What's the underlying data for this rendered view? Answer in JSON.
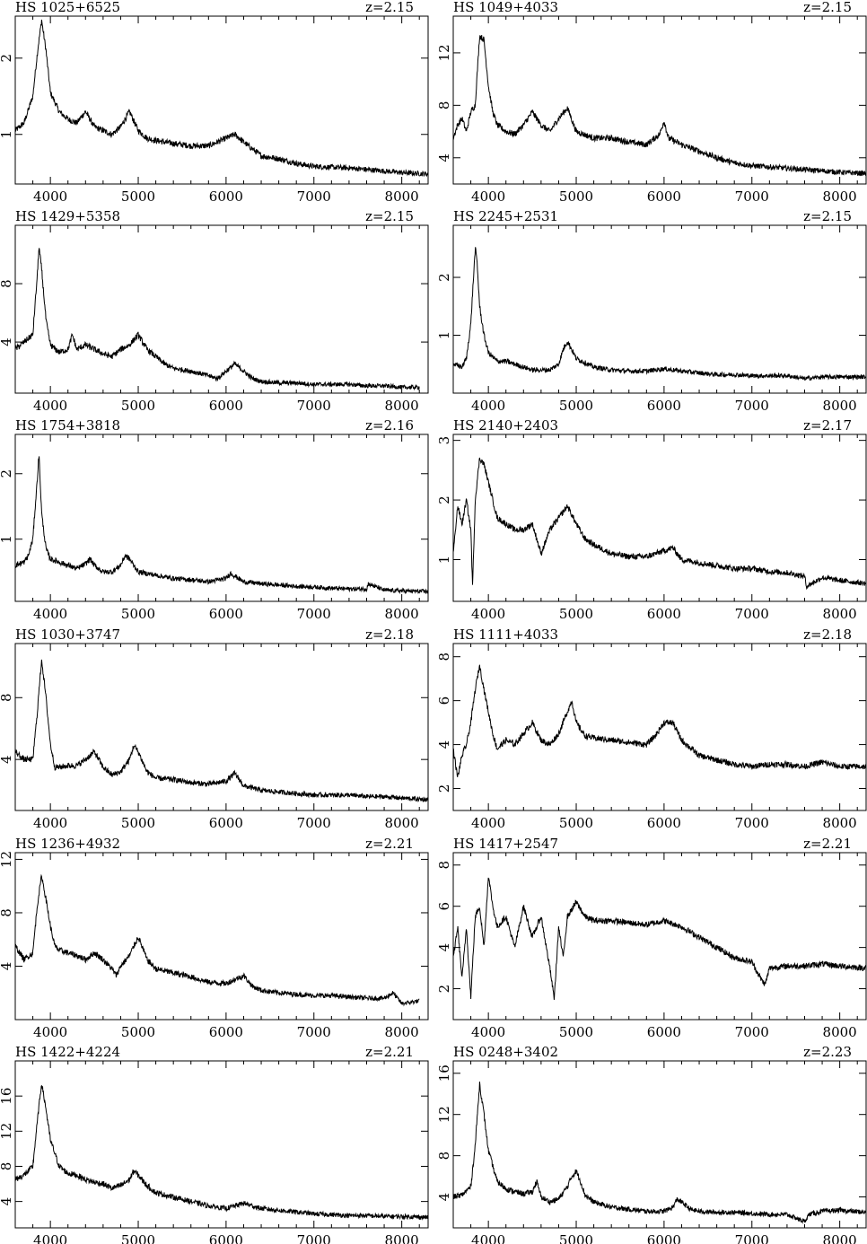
{
  "figure": {
    "x_axis": {
      "range": [
        3600,
        8300
      ],
      "ticks": [
        4000,
        5000,
        6000,
        7000,
        8000
      ]
    }
  },
  "chart_data": [
    {
      "type": "line",
      "title": "HS 1025+6525",
      "redshift_label": "z=2.15",
      "y_ticks": [
        1,
        2
      ],
      "ylim": [
        0.35,
        2.55
      ],
      "x": [
        3600,
        3700,
        3800,
        3850,
        3900,
        3950,
        4000,
        4100,
        4200,
        4300,
        4400,
        4500,
        4600,
        4700,
        4800,
        4900,
        5000,
        5100,
        5200,
        5400,
        5600,
        5800,
        6000,
        6100,
        6200,
        6400,
        6600,
        6800,
        7000,
        7200,
        7400,
        7600,
        7800,
        8000,
        8300
      ],
      "y": [
        1.05,
        1.15,
        1.5,
        2.05,
        2.5,
        2.1,
        1.55,
        1.3,
        1.2,
        1.15,
        1.3,
        1.1,
        1.05,
        1.0,
        1.1,
        1.3,
        1.05,
        0.95,
        0.92,
        0.88,
        0.85,
        0.85,
        0.95,
        1.0,
        0.9,
        0.72,
        0.68,
        0.62,
        0.58,
        0.57,
        0.56,
        0.54,
        0.52,
        0.5,
        0.48
      ]
    },
    {
      "type": "line",
      "title": "HS 1049+4033",
      "redshift_label": "z=2.15",
      "y_ticks": [
        4,
        8,
        12
      ],
      "ylim": [
        2.0,
        14.8
      ],
      "x": [
        3600,
        3650,
        3700,
        3750,
        3800,
        3850,
        3900,
        3950,
        4000,
        4050,
        4100,
        4200,
        4300,
        4400,
        4500,
        4600,
        4700,
        4800,
        4900,
        5000,
        5200,
        5400,
        5600,
        5800,
        5950,
        6000,
        6050,
        6200,
        6400,
        6600,
        6800,
        7000,
        7200,
        7400,
        7600,
        7800,
        8000,
        8300
      ],
      "y": [
        5.5,
        6.5,
        7.0,
        6.0,
        7.5,
        8.0,
        13.3,
        13.0,
        9.5,
        7.5,
        6.5,
        6.0,
        5.8,
        6.5,
        7.5,
        6.5,
        6.0,
        7.0,
        7.8,
        6.0,
        5.5,
        5.5,
        5.2,
        5.0,
        5.8,
        6.8,
        5.5,
        5.0,
        4.5,
        4.0,
        3.6,
        3.4,
        3.3,
        3.2,
        3.1,
        3.0,
        2.9,
        2.8
      ]
    },
    {
      "type": "line",
      "title": "HS 1429+5358",
      "redshift_label": "z=2.15",
      "y_ticks": [
        4,
        8
      ],
      "ylim": [
        0.5,
        12.0
      ],
      "x": [
        3600,
        3700,
        3800,
        3850,
        3870,
        3900,
        3950,
        4000,
        4100,
        4200,
        4250,
        4300,
        4400,
        4500,
        4600,
        4700,
        4800,
        4900,
        5000,
        5100,
        5200,
        5300,
        5400,
        5600,
        5800,
        5900,
        6000,
        6100,
        6200,
        6300,
        6400,
        6600,
        6800,
        7000,
        7200,
        7400,
        7600,
        7800,
        8000,
        8200
      ],
      "y": [
        3.5,
        4.0,
        4.5,
        8.5,
        10.5,
        9.0,
        5.5,
        3.8,
        3.3,
        3.5,
        4.5,
        3.5,
        3.8,
        3.5,
        3.2,
        3.0,
        3.5,
        3.8,
        4.5,
        3.5,
        3.0,
        2.5,
        2.2,
        2.0,
        1.7,
        1.5,
        2.0,
        2.5,
        2.0,
        1.5,
        1.3,
        1.2,
        1.2,
        1.1,
        1.1,
        1.1,
        1.0,
        1.0,
        0.9,
        0.9
      ]
    },
    {
      "type": "line",
      "title": "HS 2245+2531",
      "redshift_label": "z=2.15",
      "y_ticks": [
        1,
        2
      ],
      "ylim": [
        0.0,
        2.9
      ],
      "x": [
        3600,
        3700,
        3750,
        3800,
        3850,
        3870,
        3900,
        3950,
        4000,
        4100,
        4200,
        4300,
        4400,
        4500,
        4600,
        4700,
        4800,
        4850,
        4900,
        5000,
        5200,
        5400,
        5600,
        5800,
        6000,
        6200,
        6400,
        6600,
        6800,
        7000,
        7200,
        7400,
        7600,
        7800,
        8000,
        8300
      ],
      "y": [
        0.5,
        0.45,
        0.6,
        1.2,
        2.5,
        2.3,
        1.5,
        1.0,
        0.7,
        0.55,
        0.55,
        0.5,
        0.45,
        0.4,
        0.4,
        0.4,
        0.5,
        0.75,
        0.9,
        0.6,
        0.45,
        0.4,
        0.38,
        0.38,
        0.42,
        0.38,
        0.35,
        0.32,
        0.32,
        0.3,
        0.3,
        0.3,
        0.25,
        0.28,
        0.28,
        0.28
      ]
    },
    {
      "type": "line",
      "title": "HS 1754+3818",
      "redshift_label": "z=2.16",
      "y_ticks": [
        1,
        2
      ],
      "ylim": [
        0.05,
        2.6
      ],
      "x": [
        3600,
        3700,
        3750,
        3800,
        3850,
        3870,
        3900,
        3950,
        4000,
        4100,
        4200,
        4300,
        4400,
        4450,
        4500,
        4600,
        4700,
        4800,
        4850,
        4900,
        5000,
        5200,
        5400,
        5600,
        5800,
        6000,
        6050,
        6200,
        6400,
        6600,
        6800,
        7000,
        7200,
        7400,
        7600,
        7620,
        7800,
        8000,
        8300
      ],
      "y": [
        0.6,
        0.65,
        0.75,
        1.0,
        1.9,
        2.3,
        1.4,
        0.85,
        0.7,
        0.65,
        0.6,
        0.55,
        0.62,
        0.7,
        0.6,
        0.5,
        0.5,
        0.6,
        0.75,
        0.7,
        0.5,
        0.45,
        0.4,
        0.38,
        0.35,
        0.4,
        0.48,
        0.35,
        0.32,
        0.3,
        0.28,
        0.27,
        0.25,
        0.24,
        0.24,
        0.32,
        0.22,
        0.21,
        0.2
      ]
    },
    {
      "type": "line",
      "title": "HS 2140+2403",
      "redshift_label": "z=2.17",
      "y_ticks": [
        1,
        2,
        3
      ],
      "ylim": [
        0.3,
        3.1
      ],
      "x": [
        3600,
        3650,
        3700,
        3750,
        3800,
        3820,
        3850,
        3900,
        3950,
        4000,
        4050,
        4100,
        4200,
        4300,
        4400,
        4500,
        4600,
        4700,
        4800,
        4900,
        5000,
        5100,
        5200,
        5400,
        5600,
        5800,
        6000,
        6100,
        6200,
        6400,
        6600,
        6800,
        7000,
        7200,
        7400,
        7600,
        7620,
        7800,
        8000,
        8300
      ],
      "y": [
        1.1,
        1.9,
        1.6,
        2.0,
        1.5,
        0.55,
        2.0,
        2.7,
        2.6,
        2.3,
        2.0,
        1.7,
        1.6,
        1.5,
        1.5,
        1.6,
        1.1,
        1.5,
        1.7,
        1.9,
        1.6,
        1.35,
        1.25,
        1.1,
        1.05,
        1.05,
        1.15,
        1.2,
        1.0,
        0.95,
        0.9,
        0.85,
        0.85,
        0.8,
        0.78,
        0.72,
        0.55,
        0.7,
        0.65,
        0.6
      ]
    },
    {
      "type": "line",
      "title": "HS 1030+3747",
      "redshift_label": "z=2.18",
      "y_ticks": [
        4,
        8
      ],
      "ylim": [
        0.7,
        11.5
      ],
      "x": [
        3600,
        3700,
        3800,
        3850,
        3900,
        3950,
        4000,
        4050,
        4100,
        4200,
        4300,
        4400,
        4500,
        4600,
        4700,
        4800,
        4900,
        4950,
        5000,
        5100,
        5200,
        5400,
        5600,
        5800,
        6000,
        6100,
        6200,
        6400,
        6600,
        6800,
        7000,
        7200,
        7400,
        7600,
        7800,
        8000,
        8300
      ],
      "y": [
        4.5,
        4.0,
        4.0,
        7.0,
        10.5,
        8.0,
        5.0,
        3.5,
        3.5,
        3.6,
        3.6,
        4.0,
        4.5,
        3.5,
        3.0,
        3.2,
        4.0,
        4.9,
        4.5,
        3.2,
        2.8,
        2.7,
        2.5,
        2.4,
        2.6,
        3.1,
        2.3,
        2.0,
        1.9,
        1.8,
        1.7,
        1.7,
        1.7,
        1.6,
        1.6,
        1.5,
        1.4
      ]
    },
    {
      "type": "line",
      "title": "HS 1111+4033",
      "redshift_label": "z=2.18",
      "y_ticks": [
        2,
        4,
        6,
        8
      ],
      "ylim": [
        1.0,
        8.6
      ],
      "x": [
        3600,
        3650,
        3700,
        3750,
        3800,
        3850,
        3900,
        3950,
        4000,
        4050,
        4100,
        4200,
        4300,
        4400,
        4500,
        4600,
        4700,
        4800,
        4900,
        4950,
        5000,
        5100,
        5200,
        5400,
        5600,
        5800,
        5900,
        6000,
        6100,
        6200,
        6400,
        6600,
        6800,
        7000,
        7200,
        7400,
        7600,
        7800,
        8000,
        8300
      ],
      "y": [
        3.8,
        2.5,
        3.5,
        4.0,
        5.0,
        6.5,
        7.6,
        6.5,
        5.5,
        4.5,
        3.8,
        4.2,
        4.0,
        4.5,
        5.0,
        4.2,
        4.0,
        4.5,
        5.5,
        6.0,
        5.0,
        4.4,
        4.3,
        4.2,
        4.1,
        4.0,
        4.4,
        5.0,
        5.0,
        4.2,
        3.5,
        3.3,
        3.1,
        3.0,
        3.1,
        3.1,
        3.0,
        3.2,
        3.0,
        3.0
      ]
    },
    {
      "type": "line",
      "title": "HS 1236+4932",
      "redshift_label": "z=2.21",
      "y_ticks": [
        4,
        8,
        12
      ],
      "ylim": [
        0.0,
        12.5
      ],
      "x": [
        3600,
        3700,
        3800,
        3850,
        3900,
        3950,
        4000,
        4050,
        4100,
        4200,
        4300,
        4400,
        4500,
        4600,
        4700,
        4750,
        4800,
        4900,
        4950,
        5000,
        5100,
        5200,
        5400,
        5600,
        5800,
        6000,
        6100,
        6200,
        6300,
        6400,
        6600,
        6800,
        7000,
        7200,
        7400,
        7600,
        7800,
        7900,
        8000,
        8200
      ],
      "y": [
        5.5,
        4.5,
        5.0,
        8.5,
        10.8,
        9.0,
        7.0,
        5.5,
        5.2,
        5.0,
        4.8,
        4.5,
        5.0,
        4.5,
        3.8,
        3.3,
        4.0,
        4.8,
        5.5,
        6.2,
        4.5,
        3.8,
        3.5,
        3.2,
        2.8,
        2.7,
        3.0,
        3.3,
        2.5,
        2.2,
        2.0,
        1.9,
        1.8,
        1.8,
        1.7,
        1.6,
        1.6,
        2.0,
        1.2,
        1.4
      ]
    },
    {
      "type": "line",
      "title": "HS 1417+2547",
      "redshift_label": "z=2.21",
      "y_ticks": [
        2,
        4,
        6,
        8
      ],
      "ylim": [
        0.5,
        8.6
      ],
      "x": [
        3600,
        3650,
        3700,
        3750,
        3800,
        3850,
        3900,
        3950,
        4000,
        4050,
        4100,
        4200,
        4300,
        4400,
        4500,
        4600,
        4700,
        4750,
        4800,
        4850,
        4900,
        5000,
        5100,
        5200,
        5400,
        5600,
        5800,
        6000,
        6200,
        6400,
        6600,
        6800,
        7000,
        7100,
        7150,
        7200,
        7400,
        7600,
        7800,
        8000,
        8300
      ],
      "y": [
        3.5,
        5.0,
        2.5,
        5.0,
        1.6,
        5.5,
        6.0,
        4.0,
        7.5,
        6.0,
        5.0,
        5.5,
        4.0,
        6.0,
        4.5,
        5.5,
        3.0,
        1.5,
        5.0,
        3.5,
        5.5,
        6.2,
        5.5,
        5.3,
        5.3,
        5.2,
        5.1,
        5.3,
        5.0,
        4.5,
        4.0,
        3.5,
        3.3,
        2.5,
        2.2,
        3.0,
        3.1,
        3.1,
        3.2,
        3.1,
        3.0
      ]
    },
    {
      "type": "line",
      "title": "HS 1422+4224",
      "redshift_label": "z=2.21",
      "y_ticks": [
        4,
        8,
        12,
        16
      ],
      "ylim": [
        1.0,
        20.0
      ],
      "x": [
        3600,
        3700,
        3800,
        3850,
        3900,
        3950,
        4000,
        4100,
        4200,
        4300,
        4400,
        4500,
        4600,
        4700,
        4800,
        4900,
        4950,
        5000,
        5100,
        5200,
        5400,
        5600,
        5800,
        6000,
        6100,
        6200,
        6400,
        6600,
        6800,
        7000,
        7200,
        7400,
        7600,
        7800,
        8000,
        8300
      ],
      "y": [
        6.5,
        7.0,
        8.0,
        13.0,
        17.5,
        14.5,
        11.0,
        8.0,
        7.2,
        7.0,
        6.5,
        6.2,
        6.0,
        5.5,
        5.8,
        6.5,
        7.5,
        7.0,
        5.8,
        5.0,
        4.5,
        4.0,
        3.5,
        3.2,
        3.5,
        3.8,
        3.2,
        3.0,
        2.8,
        2.6,
        2.5,
        2.4,
        2.4,
        2.3,
        2.3,
        2.2
      ]
    },
    {
      "type": "line",
      "title": "HS 0248+3402",
      "redshift_label": "z=2.23",
      "y_ticks": [
        4,
        8,
        12,
        16
      ],
      "ylim": [
        1.0,
        17.2
      ],
      "x": [
        3600,
        3700,
        3800,
        3850,
        3900,
        3950,
        4000,
        4100,
        4200,
        4300,
        4400,
        4500,
        4550,
        4600,
        4700,
        4800,
        4900,
        4950,
        5000,
        5050,
        5100,
        5200,
        5400,
        5600,
        5800,
        6000,
        6100,
        6150,
        6200,
        6300,
        6400,
        6600,
        6800,
        7000,
        7200,
        7400,
        7600,
        7650,
        7800,
        8000,
        8300
      ],
      "y": [
        4.0,
        4.2,
        5.0,
        9.0,
        15.0,
        12.0,
        8.5,
        5.5,
        4.8,
        4.5,
        4.3,
        4.5,
        5.5,
        4.0,
        3.5,
        3.8,
        5.0,
        6.0,
        6.5,
        5.5,
        4.2,
        3.5,
        3.0,
        2.8,
        2.6,
        2.6,
        3.0,
        3.8,
        3.5,
        2.8,
        2.6,
        2.5,
        2.5,
        2.4,
        2.3,
        2.3,
        1.6,
        2.3,
        2.6,
        2.7,
        2.5
      ]
    }
  ]
}
